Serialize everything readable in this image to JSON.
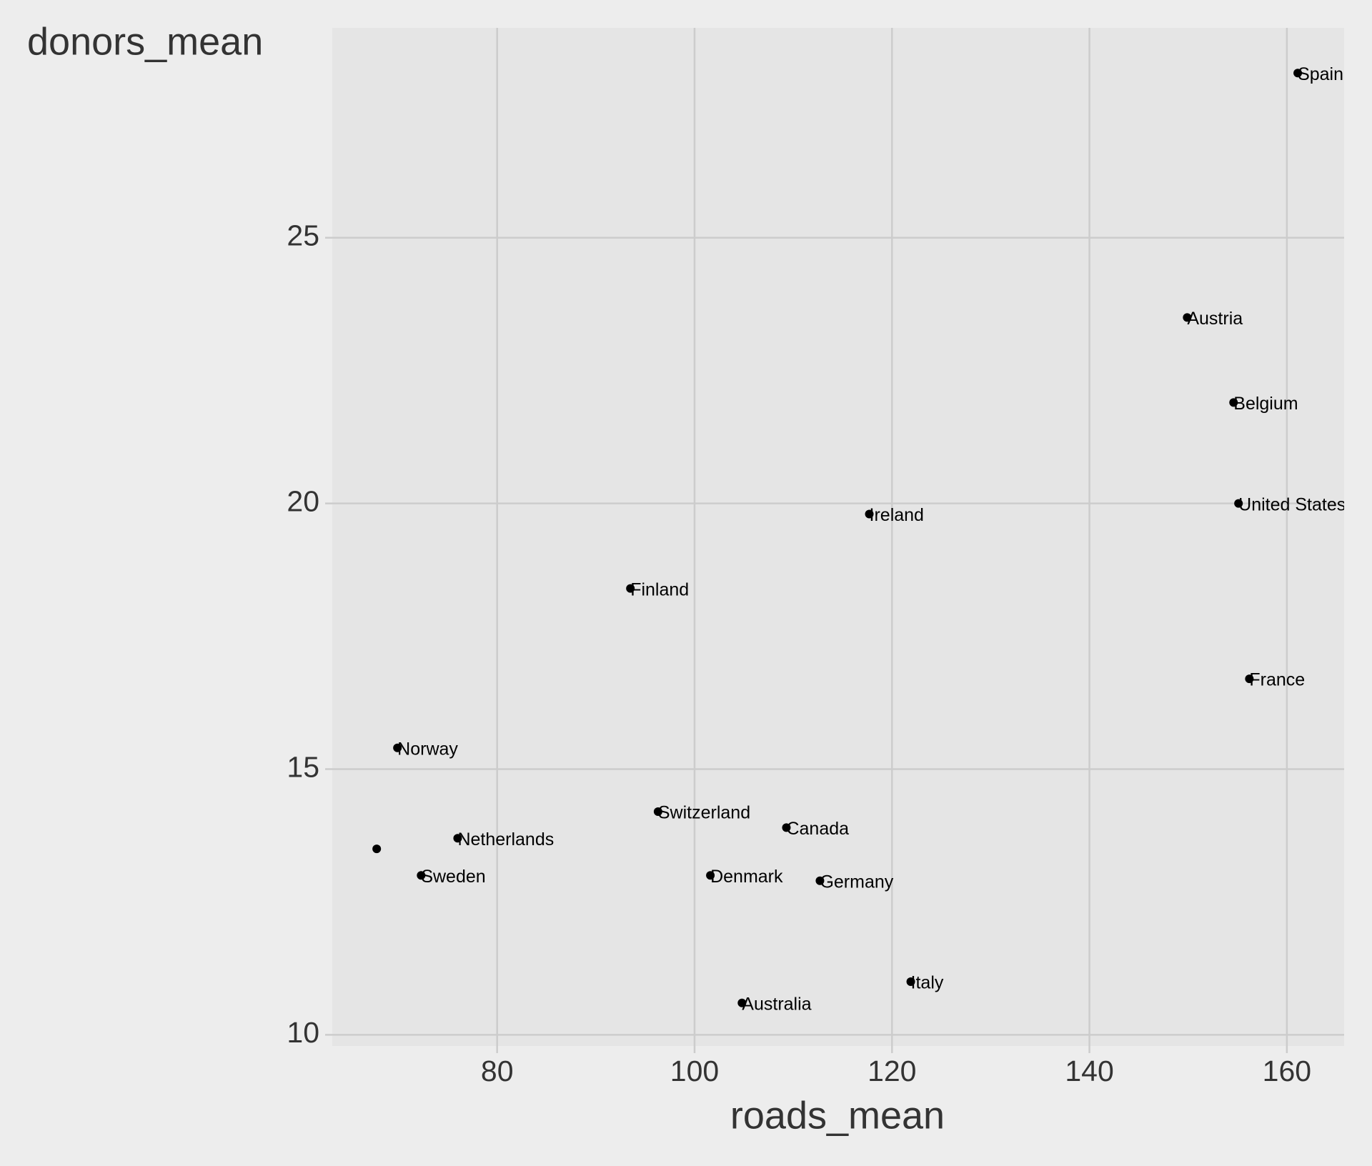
{
  "chart_data": {
    "type": "scatter",
    "x_label": "roads_mean",
    "y_label": "donors_mean",
    "x": [
      161.1,
      149.9,
      154.6,
      155.1,
      117.7,
      93.5,
      156.2,
      69.9,
      96.3,
      109.3,
      76.0,
      67.8,
      72.3,
      101.6,
      112.7,
      121.9,
      104.8
    ],
    "values": [
      28.1,
      23.5,
      21.9,
      20.0,
      19.8,
      18.4,
      16.7,
      15.4,
      14.2,
      13.9,
      13.7,
      13.5,
      13.0,
      13.0,
      12.9,
      11.0,
      10.6
    ],
    "labels": [
      "Spain",
      "Austria",
      "Belgium",
      "United States",
      "Ireland",
      "Finland",
      "France",
      "Norway",
      "Switzerland",
      "Canada",
      "Netherlands",
      null,
      "Sweden",
      "Denmark",
      "Germany",
      "Italy",
      "Australia"
    ],
    "color": "#000000",
    "xlim": [
      63.3,
      165.8
    ],
    "ylim": [
      9.79,
      28.95
    ],
    "xticks": [
      80,
      100,
      120,
      140,
      160
    ],
    "yticks": [
      10,
      15,
      20,
      25
    ],
    "grid": true
  }
}
